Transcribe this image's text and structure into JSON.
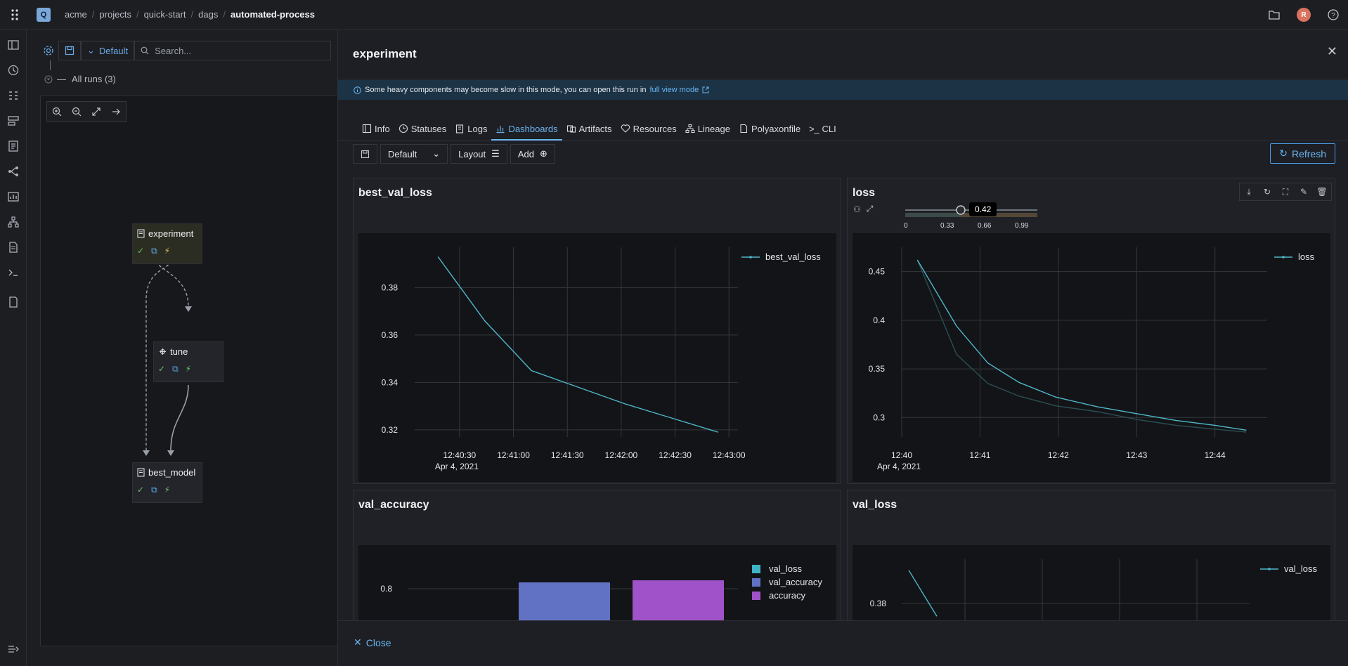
{
  "app": {
    "logo_letter": "Q",
    "breadcrumb": [
      "acme",
      "projects",
      "quick-start",
      "dags",
      "automated-process"
    ],
    "avatar_letter": "R"
  },
  "dag_panel": {
    "view_label": "Default",
    "search_placeholder": "Search...",
    "all_runs_label": "All runs (3)",
    "nodes": [
      {
        "name": "experiment"
      },
      {
        "name": "tune"
      },
      {
        "name": "best_model"
      }
    ]
  },
  "drawer": {
    "title": "experiment",
    "banner_text": "Some heavy components may become slow in this mode, you can open this run in",
    "banner_link": "full view mode",
    "tabs": [
      "Info",
      "Statuses",
      "Logs",
      "Dashboards",
      "Artifacts",
      "Resources",
      "Lineage",
      "Polyaxonfile",
      ">_ CLI"
    ],
    "active_tab": "Dashboards",
    "toolbar": {
      "layout_name": "Default",
      "layout_label": "Layout",
      "add_label": "Add",
      "refresh_label": "Refresh"
    },
    "close_label": "Close"
  },
  "loss_controls": {
    "smoothing_value": "0.42",
    "slider_ticks": [
      "0",
      "0.33",
      "0.66",
      "0.99"
    ],
    "smoothing_fraction": 0.42
  },
  "chart_data": [
    {
      "type": "line",
      "title": "best_val_loss",
      "series": [
        {
          "name": "best_val_loss",
          "x": [
            "12:40:18",
            "12:40:44",
            "12:41:10",
            "12:41:36",
            "12:42:02",
            "12:42:28",
            "12:42:54"
          ],
          "values": [
            0.393,
            0.366,
            0.345,
            0.338,
            0.331,
            0.325,
            0.319
          ],
          "color": "#4fb7c9"
        }
      ],
      "x_ticks": [
        "12:40:30",
        "12:41:00",
        "12:41:30",
        "12:42:00",
        "12:42:30",
        "12:43:00"
      ],
      "x_subtitle": "Apr 4, 2021",
      "y_ticks": [
        "0.38",
        "0.36",
        "0.34",
        "0.32"
      ],
      "ylim": [
        0.317,
        0.397
      ],
      "legend": "top-right"
    },
    {
      "type": "line",
      "title": "loss",
      "series": [
        {
          "name": "loss",
          "x": [
            "12:40:12",
            "12:40:42",
            "12:41:06",
            "12:41:30",
            "12:41:58",
            "12:42:30",
            "12:43:00",
            "12:43:30",
            "12:44:00",
            "12:44:24"
          ],
          "values": [
            0.462,
            0.394,
            0.356,
            0.336,
            0.321,
            0.311,
            0.304,
            0.297,
            0.292,
            0.287
          ],
          "color": "#4fb7c9"
        },
        {
          "name": "",
          "x": [
            "12:40:12",
            "12:40:42",
            "12:41:06",
            "12:41:30",
            "12:41:58",
            "12:42:30",
            "12:43:00",
            "12:43:30",
            "12:44:00",
            "12:44:24"
          ],
          "values": [
            0.462,
            0.365,
            0.335,
            0.322,
            0.312,
            0.306,
            0.298,
            0.292,
            0.288,
            0.285
          ],
          "color": "#2b4f55"
        }
      ],
      "x_ticks": [
        "12:40",
        "12:41",
        "12:42",
        "12:43",
        "12:44"
      ],
      "x_subtitle": "Apr 4, 2021",
      "y_ticks": [
        "0.45",
        "0.4",
        "0.35",
        "0.3"
      ],
      "ylim": [
        0.28,
        0.475
      ],
      "legend": "top-right"
    },
    {
      "type": "bar",
      "title": "val_accuracy",
      "series": [
        {
          "name": "val_loss",
          "color": "#3fb3c4"
        },
        {
          "name": "val_accuracy",
          "values": [
            0.806
          ],
          "color": "#6172c4"
        },
        {
          "name": "accuracy",
          "values": [
            0.808
          ],
          "color": "#a052c8"
        }
      ],
      "y_ticks": [
        "0.8"
      ],
      "legend": "top-right"
    },
    {
      "type": "line",
      "title": "val_loss",
      "series": [
        {
          "name": "val_loss",
          "values": [
            0.393,
            0.375
          ],
          "color": "#4fb7c9"
        }
      ],
      "y_ticks": [
        "0.38"
      ],
      "legend": "top-right"
    }
  ]
}
